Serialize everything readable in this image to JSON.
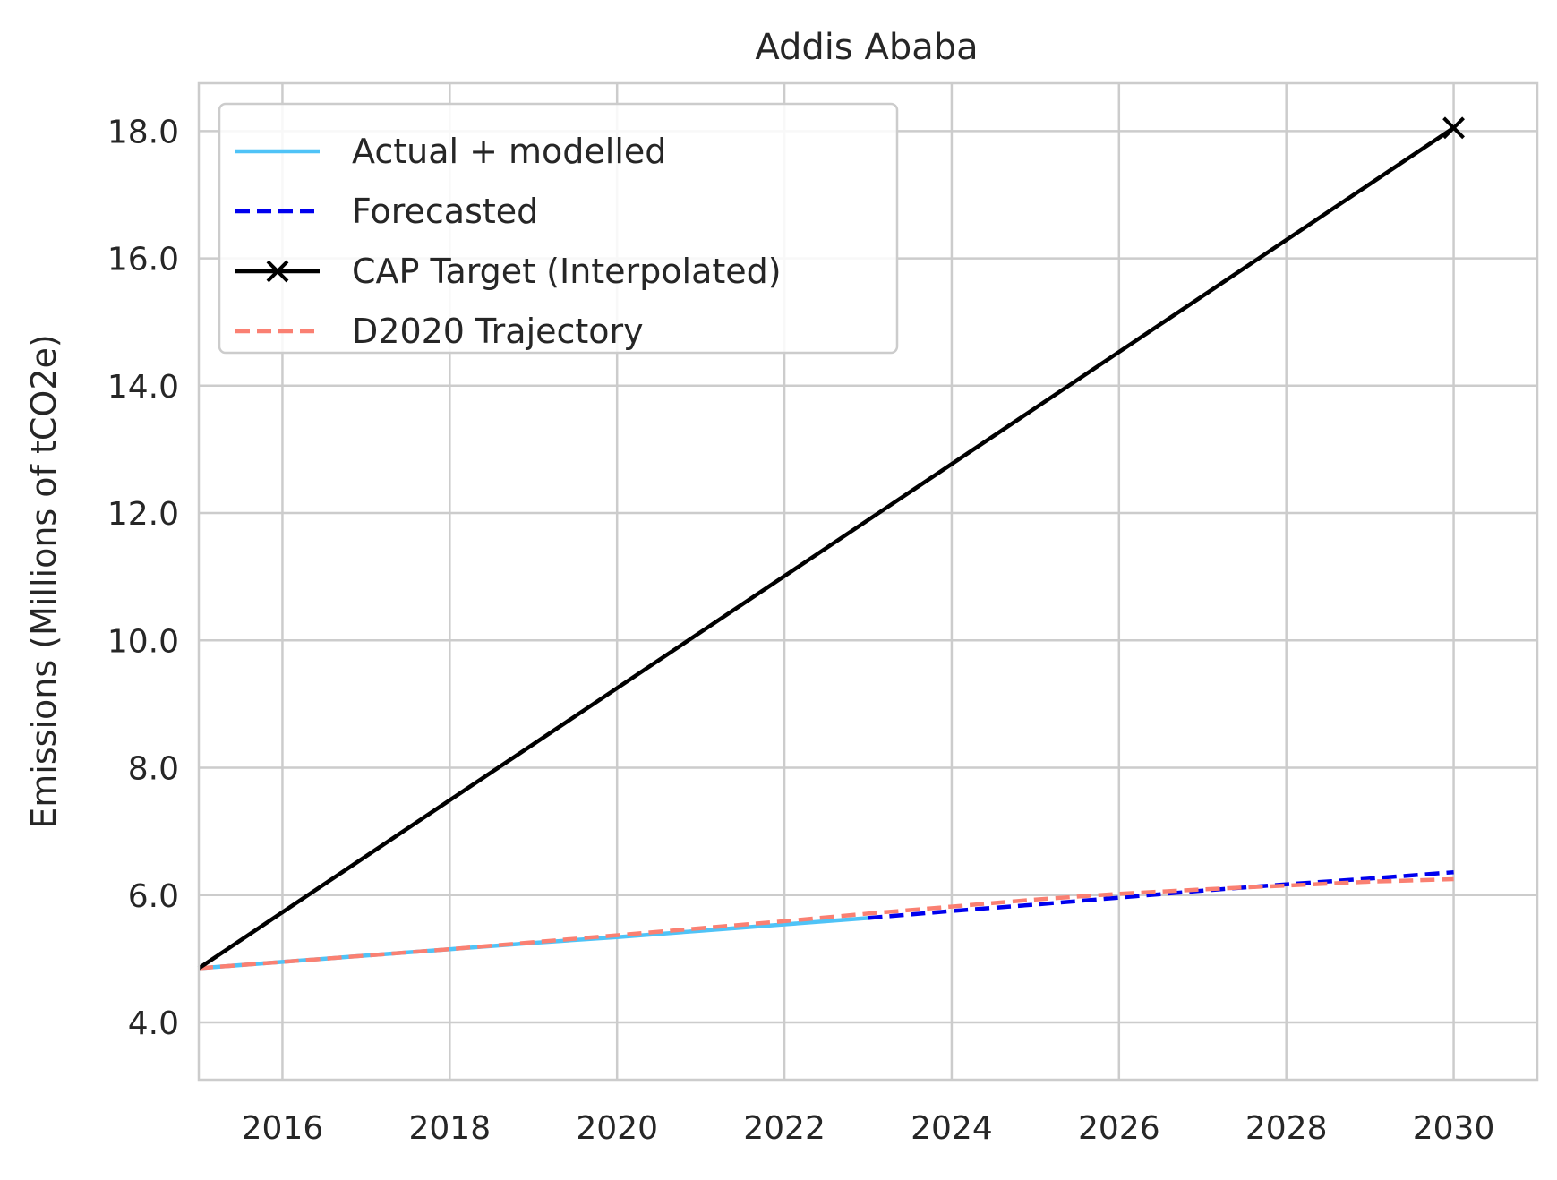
{
  "chart_data": {
    "type": "line",
    "title": "Addis Ababa",
    "xlabel": "",
    "ylabel": "Emissions (Millions of tCO2e)",
    "xlim": [
      2015,
      2031
    ],
    "ylim": [
      3.1,
      18.75
    ],
    "x_ticks": [
      2016,
      2018,
      2020,
      2022,
      2024,
      2026,
      2028,
      2030
    ],
    "y_ticks": [
      4.0,
      6.0,
      8.0,
      10.0,
      12.0,
      14.0,
      16.0,
      18.0
    ],
    "y_tick_labels": [
      "4.0",
      "6.0",
      "8.0",
      "10.0",
      "12.0",
      "14.0",
      "16.0",
      "18.0"
    ],
    "grid": true,
    "legend_position": "top-left",
    "series": [
      {
        "name": "Actual + modelled",
        "color": "#4fc3f7",
        "style": "solid",
        "x": [
          2015,
          2016,
          2017,
          2018,
          2019,
          2020,
          2021,
          2022,
          2023
        ],
        "y": [
          4.85,
          4.95,
          5.05,
          5.15,
          5.25,
          5.34,
          5.44,
          5.54,
          5.64
        ]
      },
      {
        "name": "Forecasted",
        "color": "#0000ee",
        "style": "dashed",
        "x": [
          2023,
          2024,
          2025,
          2026,
          2027,
          2028,
          2029,
          2030
        ],
        "y": [
          5.64,
          5.75,
          5.85,
          5.96,
          6.07,
          6.17,
          6.26,
          6.36
        ]
      },
      {
        "name": "CAP Target (Interpolated)",
        "color": "#000000",
        "style": "solid",
        "marker": "x",
        "marker_indices": [
          1
        ],
        "x": [
          2015,
          2030
        ],
        "y": [
          4.85,
          18.05
        ]
      },
      {
        "name": "D2020 Trajectory",
        "color": "#fa8072",
        "style": "dashed",
        "x": [
          2015,
          2016,
          2017,
          2018,
          2019,
          2020,
          2021,
          2022,
          2023,
          2024,
          2025,
          2026,
          2027,
          2028,
          2029,
          2030
        ],
        "y": [
          4.85,
          4.95,
          5.05,
          5.15,
          5.26,
          5.37,
          5.48,
          5.59,
          5.71,
          5.82,
          5.93,
          6.02,
          6.09,
          6.15,
          6.21,
          6.25
        ]
      }
    ]
  }
}
